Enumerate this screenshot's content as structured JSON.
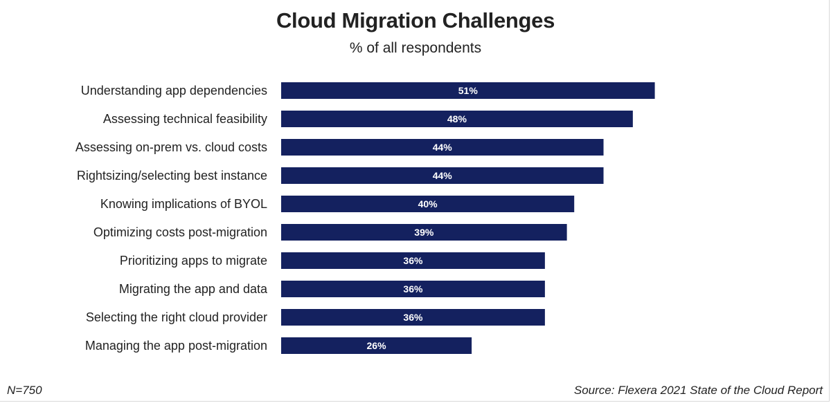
{
  "chart_data": {
    "type": "bar",
    "orientation": "horizontal",
    "title": "Cloud Migration Challenges",
    "subtitle": "% of all respondents",
    "categories": [
      "Understanding app dependencies",
      "Assessing technical feasibility",
      "Assessing on-prem vs. cloud costs",
      "Rightsizing/selecting best instance",
      "Knowing implications of BYOL",
      "Optimizing costs post-migration",
      "Prioritizing apps to migrate",
      "Migrating the app and data",
      "Selecting the right cloud provider",
      "Managing the app post-migration"
    ],
    "values": [
      51,
      48,
      44,
      44,
      40,
      39,
      36,
      36,
      36,
      26
    ],
    "value_labels": [
      "51%",
      "48%",
      "44%",
      "44%",
      "40%",
      "39%",
      "36%",
      "36%",
      "36%",
      "26%"
    ],
    "xlim": [
      0,
      100
    ],
    "grid": false,
    "bar_color": "#14215f",
    "label_color": "#ffffff"
  },
  "footer": {
    "sample": "N=750",
    "source": "Source: Flexera 2021 State of the Cloud Report"
  }
}
